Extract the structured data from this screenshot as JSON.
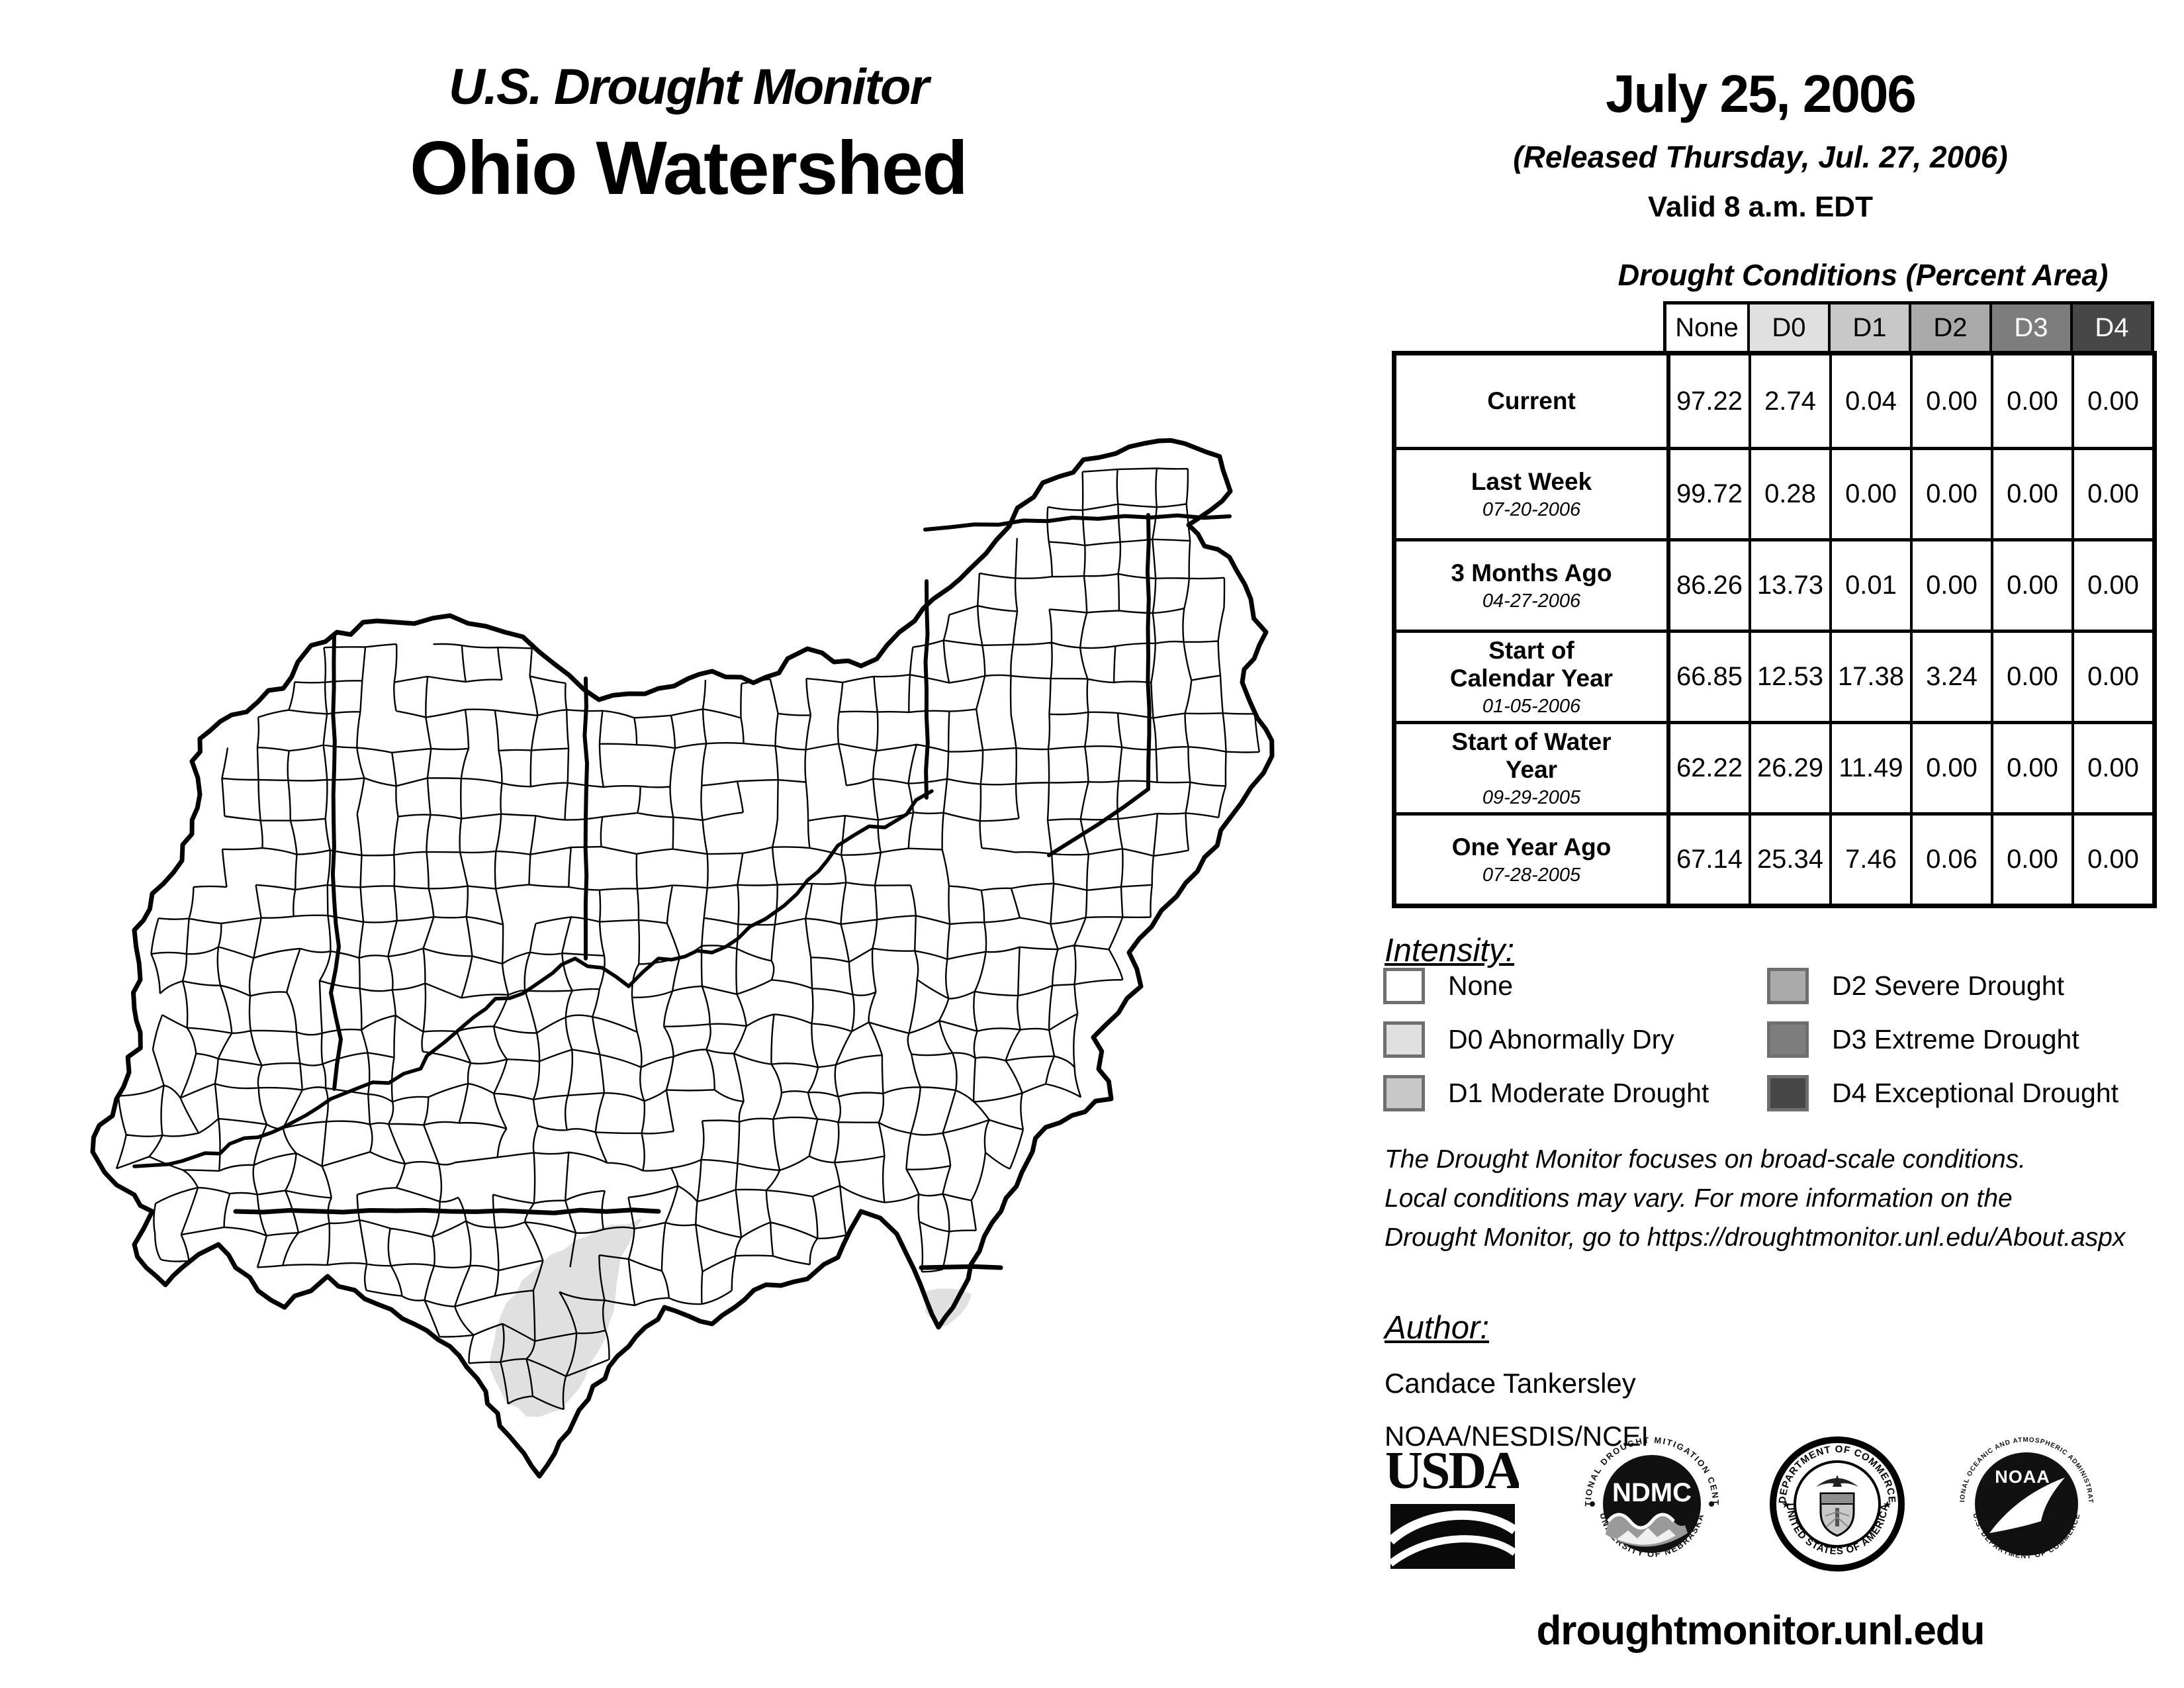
{
  "header": {
    "program": "U.S. Drought Monitor",
    "region": "Ohio Watershed"
  },
  "release": {
    "map_date": "July 25, 2006",
    "released": "(Released Thursday, Jul. 27, 2006)",
    "valid": "Valid 8 a.m. EDT"
  },
  "table": {
    "title": "Drought Conditions (Percent Area)",
    "columns": [
      "None",
      "D0",
      "D1",
      "D2",
      "D3",
      "D4"
    ],
    "rows": [
      {
        "label": "Current",
        "date": "",
        "values": [
          "97.22",
          "2.74",
          "0.04",
          "0.00",
          "0.00",
          "0.00"
        ]
      },
      {
        "label": "Last Week",
        "date": "07-20-2006",
        "values": [
          "99.72",
          "0.28",
          "0.00",
          "0.00",
          "0.00",
          "0.00"
        ]
      },
      {
        "label": "3 Months Ago",
        "date": "04-27-2006",
        "values": [
          "86.26",
          "13.73",
          "0.01",
          "0.00",
          "0.00",
          "0.00"
        ]
      },
      {
        "label": "Start of Calendar Year",
        "date": "01-05-2006",
        "values": [
          "66.85",
          "12.53",
          "17.38",
          "3.24",
          "0.00",
          "0.00"
        ]
      },
      {
        "label": "Start of Water Year",
        "date": "09-29-2005",
        "values": [
          "62.22",
          "26.29",
          "11.49",
          "0.00",
          "0.00",
          "0.00"
        ]
      },
      {
        "label": "One Year Ago",
        "date": "07-28-2005",
        "values": [
          "67.14",
          "25.34",
          "7.46",
          "0.06",
          "0.00",
          "0.00"
        ]
      }
    ]
  },
  "legend": {
    "title": "Intensity:",
    "items": [
      {
        "code": "none",
        "label": "None",
        "color": "#ffffff"
      },
      {
        "code": "d0",
        "label": "D0 Abnormally Dry",
        "color": "#e0e0e0"
      },
      {
        "code": "d1",
        "label": "D1 Moderate Drought",
        "color": "#c8c8c8"
      },
      {
        "code": "d2",
        "label": "D2 Severe Drought",
        "color": "#aaaaaa"
      },
      {
        "code": "d3",
        "label": "D3 Extreme Drought",
        "color": "#7d7d7d"
      },
      {
        "code": "d4",
        "label": "D4 Exceptional Drought",
        "color": "#474747"
      }
    ]
  },
  "notes": {
    "line1": "The Drought Monitor focuses on broad-scale conditions.",
    "line2": "Local conditions may vary. For more information on the",
    "line3": "Drought Monitor, go to https://droughtmonitor.unl.edu/About.aspx"
  },
  "author": {
    "heading": "Author:",
    "name": "Candace Tankersley",
    "org": "NOAA/NESDIS/NCEI"
  },
  "footer": {
    "url": "droughtmonitor.unl.edu"
  },
  "logos": {
    "usda": {
      "wordmark": "USDA"
    },
    "ndmc": {
      "center": "NDMC",
      "ring_top": "NATIONAL DROUGHT MITIGATION CENTER",
      "ring_bottom": "UNIVERSITY OF NEBRASKA"
    },
    "commerce": {
      "ring_top": "DEPARTMENT OF COMMERCE",
      "ring_bottom": "UNITED STATES OF AMERICA"
    },
    "noaa": {
      "center": "NOAA",
      "ring_top": "NATIONAL OCEANIC AND ATMOSPHERIC ADMINISTRATION",
      "ring_bottom": "U.S. DEPARTMENT OF COMMERCE"
    }
  },
  "map": {
    "d0_color": "#e0e0e0",
    "outline_color": "#000000"
  },
  "chart_data": {
    "type": "table",
    "title": "Drought Conditions (Percent Area)",
    "columns": [
      "None",
      "D0",
      "D1",
      "D2",
      "D3",
      "D4"
    ],
    "rows": [
      {
        "label": "Current",
        "values": [
          97.22,
          2.74,
          0.04,
          0.0,
          0.0,
          0.0
        ]
      },
      {
        "label": "Last Week 07-20-2006",
        "values": [
          99.72,
          0.28,
          0.0,
          0.0,
          0.0,
          0.0
        ]
      },
      {
        "label": "3 Months Ago 04-27-2006",
        "values": [
          86.26,
          13.73,
          0.01,
          0.0,
          0.0,
          0.0
        ]
      },
      {
        "label": "Start of Calendar Year 01-05-2006",
        "values": [
          66.85,
          12.53,
          17.38,
          3.24,
          0.0,
          0.0
        ]
      },
      {
        "label": "Start of Water Year 09-29-2005",
        "values": [
          62.22,
          26.29,
          11.49,
          0.0,
          0.0,
          0.0
        ]
      },
      {
        "label": "One Year Ago 07-28-2005",
        "values": [
          67.14,
          25.34,
          7.46,
          0.06,
          0.0,
          0.0
        ]
      }
    ]
  }
}
